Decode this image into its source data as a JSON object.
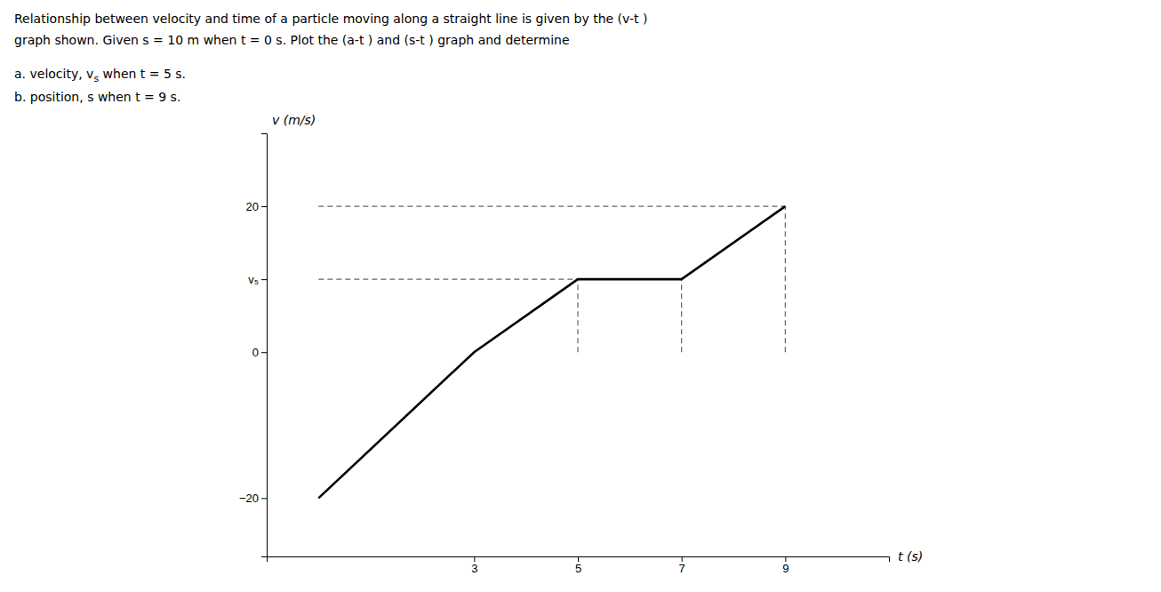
{
  "chart_data": {
    "type": "line",
    "title": [
      "Relationship between velocity and time of a particle moving along a straight line is given by the (v-t )",
      "graph shown. Given s = 10 m when t = 0 s. Plot the (a-t ) and (s-t ) graph and determine"
    ],
    "annotations": [
      {
        "text": "a. velocity, v",
        "subscript": "s",
        "text_after": " when t = 5 s."
      },
      {
        "text": "b. position, s when t = 9 s."
      }
    ],
    "xlabel": "t (s)",
    "ylabel": "v (m/s)",
    "x": [
      0,
      3,
      5,
      7,
      9
    ],
    "values": [
      -20,
      0,
      10,
      10,
      20
    ],
    "color": "#000000",
    "line_style": "solid",
    "reference_lines": [
      {
        "x": [
          0,
          9
        ],
        "y": [
          20,
          20
        ],
        "color": "#666666",
        "line_style": "dashed"
      },
      {
        "x": [
          0,
          5
        ],
        "y": [
          10,
          10
        ],
        "color": "#666666",
        "line_style": "dashed"
      },
      {
        "x": [
          5,
          5
        ],
        "y": [
          0,
          10
        ],
        "color": "#666666",
        "line_style": "dashed"
      },
      {
        "x": [
          7,
          7
        ],
        "y": [
          0,
          10
        ],
        "color": "#666666",
        "line_style": "dashed"
      },
      {
        "x": [
          9,
          9
        ],
        "y": [
          0,
          20
        ],
        "color": "#666666",
        "line_style": "dashed"
      }
    ],
    "xlim": [
      -1.0,
      11.0
    ],
    "ylim": [
      -28,
      30
    ],
    "xticks": [
      3,
      5,
      7,
      9
    ],
    "yticks": [
      {
        "value": -20,
        "label": "−20"
      },
      0,
      {
        "value": 10,
        "label": "v₅"
      },
      20
    ],
    "grid": false
  }
}
